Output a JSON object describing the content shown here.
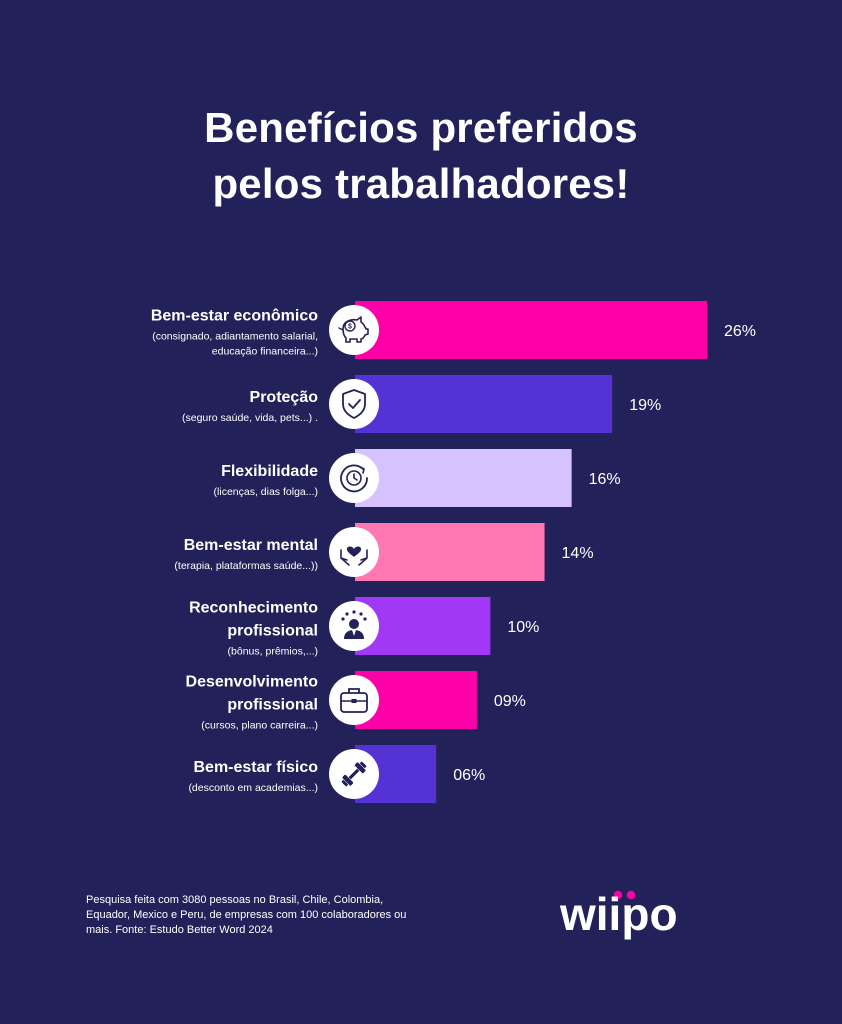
{
  "title_line1": "Benefícios preferidos",
  "title_line2": "pelos trabalhadores!",
  "footnote": "Pesquisa feita com 3080 pessoas no Brasil, Chile, Colombia, Equador, Mexico e Peru, de empresas com 100 colaboradores ou mais. Fonte: Estudo Better Word 2024",
  "logo_text": "wiipo",
  "colors": {
    "background": "#23215a",
    "magenta": "#ff00a8",
    "violet": "#5532d6",
    "lavender": "#d6c2ff",
    "pink": "#ff78b4",
    "purple": "#a138f5"
  },
  "chart_data": {
    "type": "bar",
    "orientation": "horizontal",
    "title": "Benefícios preferidos pelos trabalhadores!",
    "xlim": [
      0,
      26
    ],
    "grid": false,
    "items": [
      {
        "label": [
          "Bem-estar econômico"
        ],
        "sub": [
          "(consignado, adiantamento salarial,",
          "educação financeira...)"
        ],
        "value": 26,
        "value_label": "26%",
        "color": "#ff00a8",
        "icon": "piggy-bank-icon"
      },
      {
        "label": [
          "Proteção"
        ],
        "sub": [
          "(seguro saúde, vida, pets...) ."
        ],
        "value": 19,
        "value_label": "19%",
        "color": "#5532d6",
        "icon": "shield-check-icon"
      },
      {
        "label": [
          "Flexibilidade"
        ],
        "sub": [
          "(licenças, dias folga...)"
        ],
        "value": 16,
        "value_label": "16%",
        "color": "#d6c2ff",
        "icon": "clock-cycle-icon"
      },
      {
        "label": [
          "Bem-estar mental"
        ],
        "sub": [
          "(terapia, plataformas saúde...))"
        ],
        "value": 14,
        "value_label": "14%",
        "color": "#ff78b4",
        "icon": "hands-heart-icon"
      },
      {
        "label": [
          "Reconhecimento",
          "profissional"
        ],
        "sub": [
          "(bônus, prêmios,...)"
        ],
        "value": 10,
        "value_label": "10%",
        "color": "#a138f5",
        "icon": "person-stars-icon"
      },
      {
        "label": [
          "Desenvolvimento",
          "profissional"
        ],
        "sub": [
          "(cursos, plano carreira...)"
        ],
        "value": 9,
        "value_label": "09%",
        "color": "#ff00a8",
        "icon": "briefcase-icon"
      },
      {
        "label": [
          "Bem-estar físico"
        ],
        "sub": [
          "(desconto em academias...)"
        ],
        "value": 6,
        "value_label": "06%",
        "color": "#5532d6",
        "icon": "dumbbell-icon"
      }
    ]
  }
}
